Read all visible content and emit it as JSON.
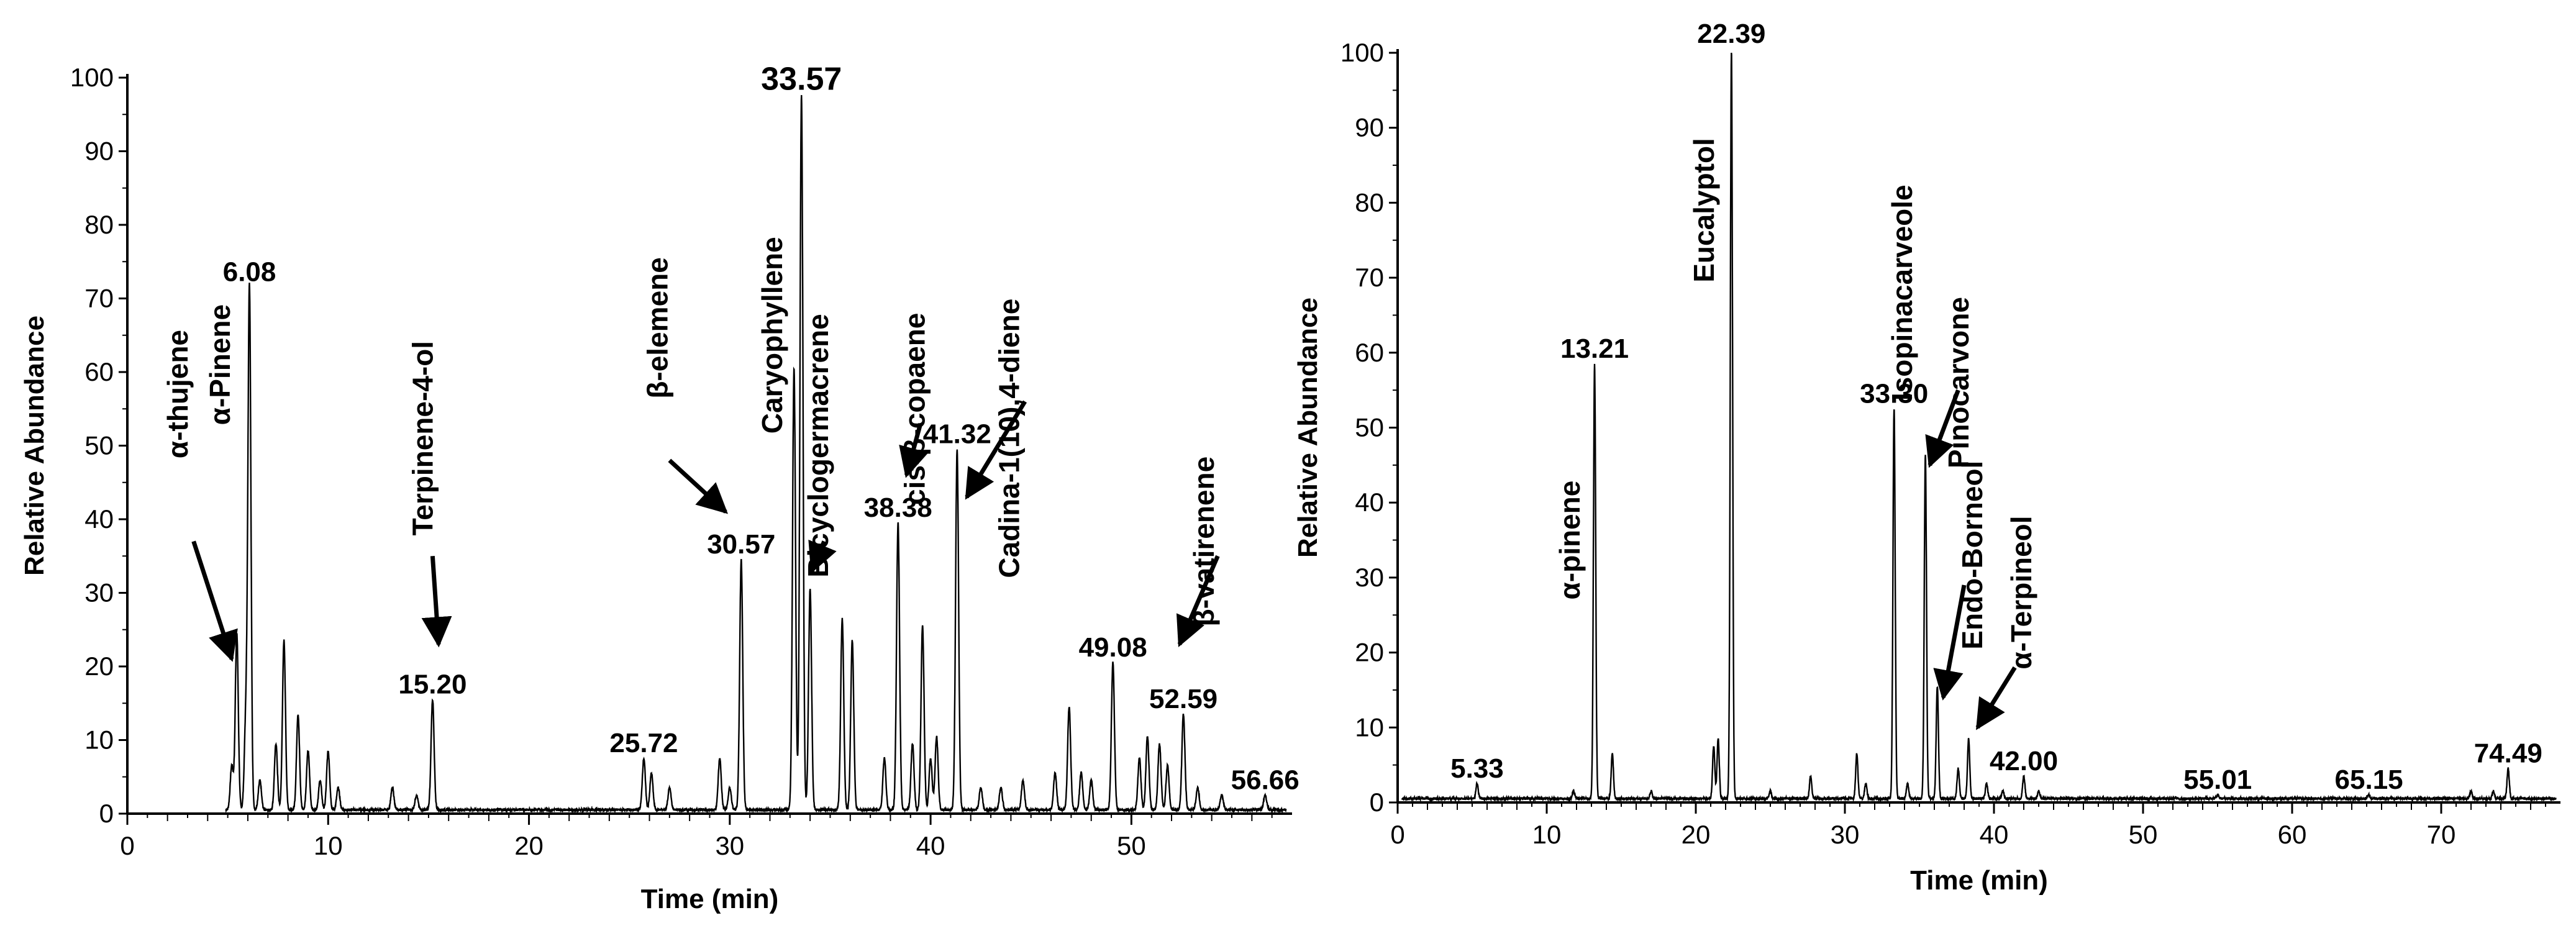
{
  "chart_data": [
    {
      "type": "line",
      "xlabel": "Time (min)",
      "ylabel": "Relative Abundance",
      "xlim": [
        0,
        58
      ],
      "ylim": [
        0,
        100
      ],
      "xticks": [
        0,
        10,
        20,
        30,
        40,
        50
      ],
      "yticks": [
        0,
        10,
        20,
        30,
        40,
        50,
        60,
        70,
        80,
        90,
        100
      ],
      "grid": false,
      "peaks": [
        {
          "x": 5.2,
          "y": 6
        },
        {
          "x": 5.45,
          "y": 24
        },
        {
          "x": 5.9,
          "y": 12
        },
        {
          "x": 6.08,
          "y": 71
        },
        {
          "x": 6.6,
          "y": 4
        },
        {
          "x": 7.4,
          "y": 9
        },
        {
          "x": 7.8,
          "y": 23
        },
        {
          "x": 8.5,
          "y": 13
        },
        {
          "x": 9.0,
          "y": 8
        },
        {
          "x": 9.6,
          "y": 4
        },
        {
          "x": 10.0,
          "y": 8
        },
        {
          "x": 10.5,
          "y": 3
        },
        {
          "x": 13.2,
          "y": 3
        },
        {
          "x": 14.4,
          "y": 2
        },
        {
          "x": 15.2,
          "y": 15
        },
        {
          "x": 25.72,
          "y": 7
        },
        {
          "x": 26.1,
          "y": 5
        },
        {
          "x": 27.0,
          "y": 3
        },
        {
          "x": 29.5,
          "y": 7
        },
        {
          "x": 30.0,
          "y": 3
        },
        {
          "x": 30.57,
          "y": 34
        },
        {
          "x": 33.2,
          "y": 60
        },
        {
          "x": 33.57,
          "y": 97
        },
        {
          "x": 34.0,
          "y": 30
        },
        {
          "x": 35.6,
          "y": 26
        },
        {
          "x": 36.1,
          "y": 23
        },
        {
          "x": 37.7,
          "y": 7
        },
        {
          "x": 38.38,
          "y": 39
        },
        {
          "x": 39.1,
          "y": 9
        },
        {
          "x": 39.6,
          "y": 25
        },
        {
          "x": 40.0,
          "y": 7
        },
        {
          "x": 40.3,
          "y": 10
        },
        {
          "x": 41.32,
          "y": 49
        },
        {
          "x": 42.5,
          "y": 3
        },
        {
          "x": 43.5,
          "y": 3
        },
        {
          "x": 44.6,
          "y": 4
        },
        {
          "x": 46.2,
          "y": 5
        },
        {
          "x": 46.9,
          "y": 14
        },
        {
          "x": 47.5,
          "y": 5
        },
        {
          "x": 48.0,
          "y": 4
        },
        {
          "x": 49.08,
          "y": 20
        },
        {
          "x": 50.4,
          "y": 7
        },
        {
          "x": 50.8,
          "y": 10
        },
        {
          "x": 51.4,
          "y": 9
        },
        {
          "x": 51.8,
          "y": 6
        },
        {
          "x": 52.59,
          "y": 13
        },
        {
          "x": 53.3,
          "y": 3
        },
        {
          "x": 54.5,
          "y": 2
        },
        {
          "x": 56.66,
          "y": 2
        }
      ],
      "rt_labels": [
        {
          "text": "6.08",
          "x": 6.08,
          "y": 71
        },
        {
          "text": "15.20",
          "x": 15.2,
          "y": 15
        },
        {
          "text": "25.72",
          "x": 25.72,
          "y": 7
        },
        {
          "text": "30.57",
          "x": 30.57,
          "y": 34
        },
        {
          "text": "33.57",
          "x": 33.57,
          "y": 97
        },
        {
          "text": "38.38",
          "x": 38.38,
          "y": 39
        },
        {
          "text": "41.32",
          "x": 41.32,
          "y": 49
        },
        {
          "text": "49.08",
          "x": 49.08,
          "y": 20
        },
        {
          "text": "52.59",
          "x": 52.59,
          "y": 13
        },
        {
          "text": "56.66",
          "x": 56.66,
          "y": 2
        }
      ],
      "compounds": [
        {
          "name": "α-thujene",
          "x": 3.0,
          "y": 57,
          "arrow_from": [
            3.3,
            37
          ],
          "arrow_to": [
            5.2,
            21
          ]
        },
        {
          "name": "α-Pinene",
          "x": 5.1,
          "y": 61
        },
        {
          "name": "Terpinene-4-ol",
          "x": 15.2,
          "y": 51,
          "arrow_from": [
            15.2,
            35
          ],
          "arrow_to": [
            15.5,
            23
          ]
        },
        {
          "name": "β-elemene",
          "x": 26.9,
          "y": 66,
          "arrow_from": [
            27.0,
            48
          ],
          "arrow_to": [
            29.8,
            41
          ]
        },
        {
          "name": "Caryophyllene",
          "x": 32.6,
          "y": 65
        },
        {
          "name": "Bicyclogermacrene",
          "x": 34.9,
          "y": 50,
          "arrow_from": [
            34.7,
            37
          ],
          "arrow_to": [
            34.1,
            33
          ]
        },
        {
          "name": "cis-β-copaene",
          "x": 39.7,
          "y": 55,
          "arrow_from": [
            39.5,
            53
          ],
          "arrow_to": [
            38.8,
            46
          ]
        },
        {
          "name": "Cadina-1(10),4-diene",
          "x": 44.4,
          "y": 51,
          "arrow_from": [
            44.7,
            56
          ],
          "arrow_to": [
            41.8,
            43
          ]
        },
        {
          "name": "β-vatirenene",
          "x": 54.1,
          "y": 37,
          "arrow_from": [
            54.3,
            35
          ],
          "arrow_to": [
            52.4,
            23
          ]
        }
      ]
    },
    {
      "type": "line",
      "xlabel": "Time (min)",
      "ylabel": "Relative Abundance",
      "xlim": [
        0,
        78
      ],
      "ylim": [
        0,
        100
      ],
      "xticks": [
        0,
        10,
        20,
        30,
        40,
        50,
        60,
        70
      ],
      "yticks": [
        0,
        10,
        20,
        30,
        40,
        50,
        60,
        70,
        80,
        90,
        100
      ],
      "grid": false,
      "peaks": [
        {
          "x": 5.33,
          "y": 2
        },
        {
          "x": 11.8,
          "y": 1
        },
        {
          "x": 13.21,
          "y": 58
        },
        {
          "x": 14.4,
          "y": 6
        },
        {
          "x": 17.0,
          "y": 1
        },
        {
          "x": 21.2,
          "y": 7
        },
        {
          "x": 21.5,
          "y": 8
        },
        {
          "x": 22.39,
          "y": 100
        },
        {
          "x": 25.0,
          "y": 1
        },
        {
          "x": 27.7,
          "y": 3
        },
        {
          "x": 30.8,
          "y": 6
        },
        {
          "x": 31.4,
          "y": 2
        },
        {
          "x": 33.3,
          "y": 52
        },
        {
          "x": 34.2,
          "y": 2
        },
        {
          "x": 35.4,
          "y": 46
        },
        {
          "x": 36.2,
          "y": 15
        },
        {
          "x": 37.6,
          "y": 4
        },
        {
          "x": 38.3,
          "y": 8
        },
        {
          "x": 39.5,
          "y": 2
        },
        {
          "x": 40.6,
          "y": 1
        },
        {
          "x": 42.0,
          "y": 3
        },
        {
          "x": 43.0,
          "y": 1
        },
        {
          "x": 55.01,
          "y": 0.5
        },
        {
          "x": 65.15,
          "y": 0.5
        },
        {
          "x": 72.0,
          "y": 1
        },
        {
          "x": 73.5,
          "y": 1
        },
        {
          "x": 74.49,
          "y": 4
        }
      ],
      "rt_labels": [
        {
          "text": "5.33",
          "x": 5.33,
          "y": 2
        },
        {
          "text": "13.21",
          "x": 13.21,
          "y": 58
        },
        {
          "text": "22.39",
          "x": 22.39,
          "y": 100
        },
        {
          "text": "33.30",
          "x": 33.3,
          "y": 52
        },
        {
          "text": "42.00",
          "x": 42.0,
          "y": 3
        },
        {
          "text": "55.01",
          "x": 55.01,
          "y": 0.5
        },
        {
          "text": "65.15",
          "x": 65.15,
          "y": 0.5
        },
        {
          "text": "74.49",
          "x": 74.49,
          "y": 4
        }
      ],
      "compounds": [
        {
          "name": "α-pinene",
          "x": 12.2,
          "y": 35
        },
        {
          "name": "Eucalyptol",
          "x": 21.2,
          "y": 79
        },
        {
          "name": "Isopinacarveole",
          "x": 34.5,
          "y": 68
        },
        {
          "name": "Pinocarvone",
          "x": 38.3,
          "y": 56,
          "arrow_from": [
            37.6,
            55
          ],
          "arrow_to": [
            35.7,
            45
          ]
        },
        {
          "name": "Endo-Borneol",
          "x": 39.2,
          "y": 33,
          "arrow_from": [
            38.0,
            29
          ],
          "arrow_to": [
            36.6,
            14
          ]
        },
        {
          "name": "α-Terpineol",
          "x": 42.5,
          "y": 28,
          "arrow_from": [
            41.4,
            18
          ],
          "arrow_to": [
            38.9,
            10
          ]
        }
      ]
    }
  ]
}
